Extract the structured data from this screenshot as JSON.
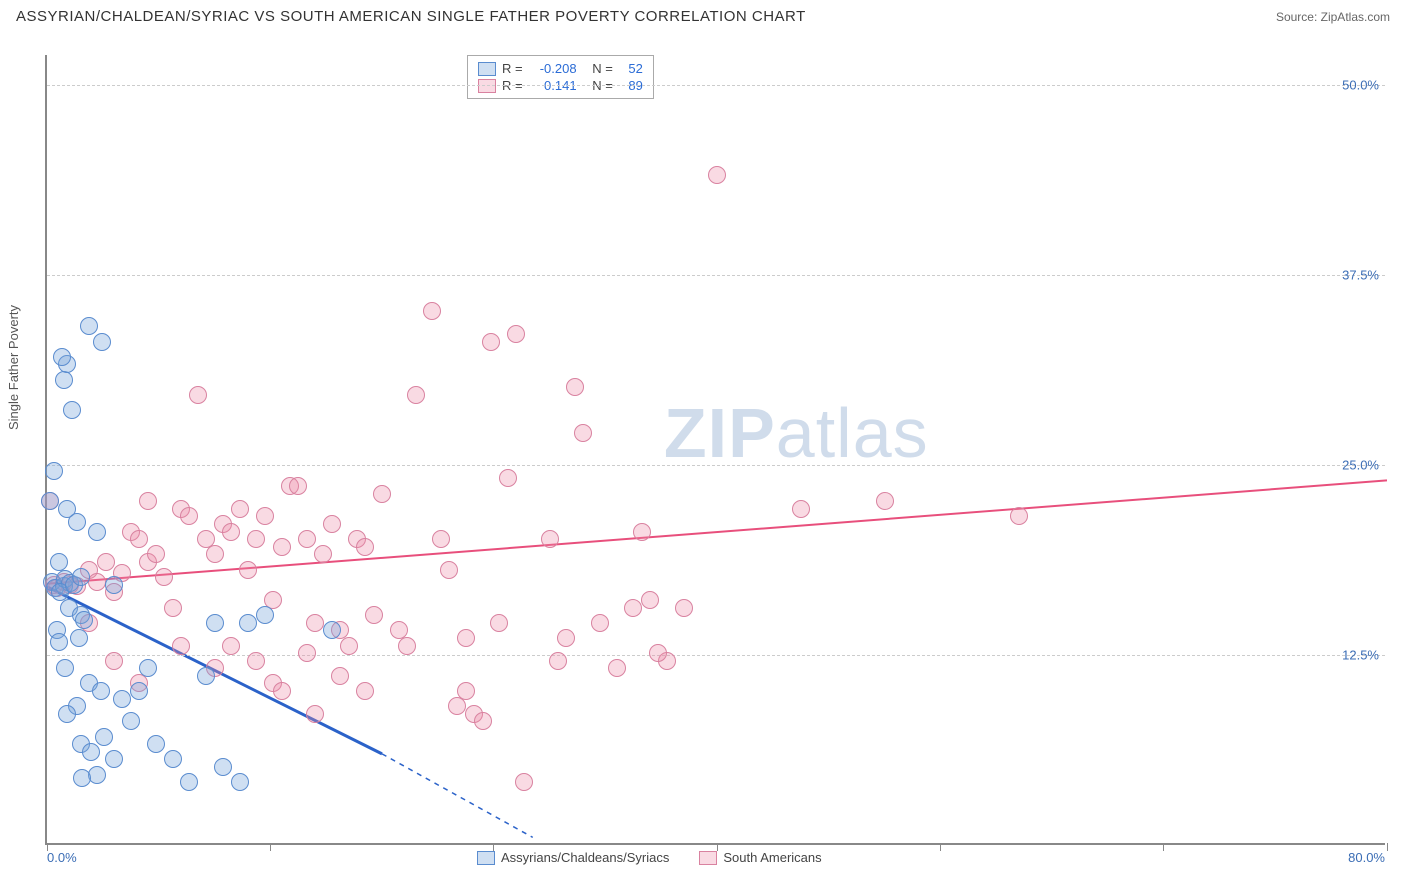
{
  "header": {
    "title": "ASSYRIAN/CHALDEAN/SYRIAC VS SOUTH AMERICAN SINGLE FATHER POVERTY CORRELATION CHART",
    "source_label": "Source:",
    "source_name": "ZipAtlas.com"
  },
  "axes": {
    "y_label": "Single Father Poverty",
    "x_min": 0,
    "x_max": 80,
    "y_min": 0,
    "y_max": 52,
    "x_min_label": "0.0%",
    "x_max_label": "80.0%",
    "y_grid": [
      {
        "value": 12.5,
        "label": "12.5%"
      },
      {
        "value": 25.0,
        "label": "25.0%"
      },
      {
        "value": 37.5,
        "label": "37.5%"
      },
      {
        "value": 50.0,
        "label": "50.0%"
      }
    ],
    "x_ticks": [
      0,
      13.3,
      26.6,
      40,
      53.3,
      66.6,
      80
    ]
  },
  "series": {
    "blue": {
      "label": "Assyrians/Chaldeans/Syriacs",
      "fill": "rgba(118,162,217,0.35)",
      "stroke": "#5a8ccf",
      "r_label": "R =",
      "r_value": "-0.208",
      "n_label": "N =",
      "n_value": "52",
      "marker_radius": 9,
      "trend": {
        "x1": 0,
        "y1": 17.0,
        "x2": 20,
        "y2": 6.0,
        "color": "#2b62c9",
        "width": 3,
        "dash_x2": 29,
        "dash_y2": 0.5
      },
      "points": [
        [
          0.3,
          17.2
        ],
        [
          0.5,
          16.8
        ],
        [
          1.0,
          16.9
        ],
        [
          1.1,
          17.4
        ],
        [
          1.4,
          17.1
        ],
        [
          0.8,
          16.5
        ],
        [
          1.6,
          17.0
        ],
        [
          1.2,
          22.0
        ],
        [
          1.8,
          21.1
        ],
        [
          0.7,
          18.5
        ],
        [
          0.2,
          22.5
        ],
        [
          0.4,
          24.5
        ],
        [
          2.5,
          34.0
        ],
        [
          3.3,
          33.0
        ],
        [
          1.0,
          30.5
        ],
        [
          1.2,
          31.5
        ],
        [
          1.5,
          28.5
        ],
        [
          0.9,
          32.0
        ],
        [
          1.3,
          15.5
        ],
        [
          2.0,
          15.0
        ],
        [
          1.9,
          13.5
        ],
        [
          2.2,
          14.7
        ],
        [
          0.6,
          14.0
        ],
        [
          0.7,
          13.2
        ],
        [
          1.1,
          11.5
        ],
        [
          2.5,
          10.5
        ],
        [
          3.2,
          10.0
        ],
        [
          1.8,
          9.0
        ],
        [
          1.2,
          8.5
        ],
        [
          2.0,
          6.5
        ],
        [
          2.6,
          6.0
        ],
        [
          3.4,
          7.0
        ],
        [
          4.0,
          5.5
        ],
        [
          3.0,
          4.5
        ],
        [
          2.1,
          4.3
        ],
        [
          4.5,
          9.5
        ],
        [
          5.5,
          10.0
        ],
        [
          5.0,
          8.0
        ],
        [
          6.5,
          6.5
        ],
        [
          6.0,
          11.5
        ],
        [
          7.5,
          5.5
        ],
        [
          8.5,
          4.0
        ],
        [
          9.5,
          11.0
        ],
        [
          10.5,
          5.0
        ],
        [
          11.5,
          4.0
        ],
        [
          10.0,
          14.5
        ],
        [
          13.0,
          15.0
        ],
        [
          12.0,
          14.5
        ],
        [
          17.0,
          14.0
        ],
        [
          4.0,
          17.0
        ],
        [
          3.0,
          20.5
        ],
        [
          2.0,
          17.5
        ]
      ]
    },
    "pink": {
      "label": "South Americans",
      "fill": "rgba(236,140,168,0.32)",
      "stroke": "#d982a0",
      "r_label": "R =",
      "r_value": "0.141",
      "n_label": "N =",
      "n_value": "89",
      "marker_radius": 9,
      "trend": {
        "x1": 0,
        "y1": 17.2,
        "x2": 80,
        "y2": 24.0,
        "color": "#e84f7c",
        "width": 2
      },
      "points": [
        [
          0.2,
          22.5
        ],
        [
          0.4,
          17.0
        ],
        [
          0.6,
          16.8
        ],
        [
          1.0,
          17.2
        ],
        [
          1.4,
          17.0
        ],
        [
          1.8,
          16.9
        ],
        [
          2.5,
          18.0
        ],
        [
          3.0,
          17.2
        ],
        [
          3.5,
          18.5
        ],
        [
          4.0,
          16.5
        ],
        [
          4.5,
          17.8
        ],
        [
          5.0,
          20.5
        ],
        [
          5.5,
          20.0
        ],
        [
          6.0,
          18.5
        ],
        [
          6.5,
          19.0
        ],
        [
          7.0,
          17.5
        ],
        [
          8.0,
          22.0
        ],
        [
          8.5,
          21.5
        ],
        [
          9.0,
          29.5
        ],
        [
          9.5,
          20.0
        ],
        [
          10.0,
          19.0
        ],
        [
          10.5,
          21.0
        ],
        [
          11.0,
          20.5
        ],
        [
          11.5,
          22.0
        ],
        [
          12.0,
          18.0
        ],
        [
          12.5,
          20.0
        ],
        [
          13.0,
          21.5
        ],
        [
          13.5,
          16.0
        ],
        [
          14.0,
          19.5
        ],
        [
          14.5,
          23.5
        ],
        [
          15.0,
          23.5
        ],
        [
          15.5,
          20.0
        ],
        [
          16.0,
          14.5
        ],
        [
          16.5,
          19.0
        ],
        [
          17.0,
          21.0
        ],
        [
          17.5,
          14.0
        ],
        [
          18.0,
          13.0
        ],
        [
          18.5,
          20.0
        ],
        [
          19.0,
          19.5
        ],
        [
          19.5,
          15.0
        ],
        [
          20.0,
          23.0
        ],
        [
          21.0,
          14.0
        ],
        [
          21.5,
          13.0
        ],
        [
          22.0,
          29.5
        ],
        [
          23.0,
          35.0
        ],
        [
          23.5,
          20.0
        ],
        [
          24.0,
          18.0
        ],
        [
          24.5,
          9.0
        ],
        [
          25.0,
          10.0
        ],
        [
          25.5,
          8.5
        ],
        [
          26.0,
          8.0
        ],
        [
          26.5,
          33.0
        ],
        [
          27.0,
          14.5
        ],
        [
          27.5,
          24.0
        ],
        [
          28.0,
          33.5
        ],
        [
          28.5,
          4.0
        ],
        [
          25.0,
          13.5
        ],
        [
          10.0,
          11.5
        ],
        [
          11.0,
          13.0
        ],
        [
          12.5,
          12.0
        ],
        [
          13.5,
          10.5
        ],
        [
          14.0,
          10.0
        ],
        [
          15.5,
          12.5
        ],
        [
          16.0,
          8.5
        ],
        [
          17.5,
          11.0
        ],
        [
          19.0,
          10.0
        ],
        [
          30.0,
          20.0
        ],
        [
          30.5,
          12.0
        ],
        [
          31.0,
          13.5
        ],
        [
          31.5,
          30.0
        ],
        [
          32.0,
          27.0
        ],
        [
          33.0,
          14.5
        ],
        [
          34.0,
          11.5
        ],
        [
          35.0,
          15.5
        ],
        [
          36.0,
          16.0
        ],
        [
          37.0,
          12.0
        ],
        [
          40.0,
          44.0
        ],
        [
          35.5,
          20.5
        ],
        [
          36.5,
          12.5
        ],
        [
          38.0,
          15.5
        ],
        [
          45.0,
          22.0
        ],
        [
          50.0,
          22.5
        ],
        [
          58.0,
          21.5
        ],
        [
          2.5,
          14.5
        ],
        [
          4.0,
          12.0
        ],
        [
          5.5,
          10.5
        ],
        [
          6.0,
          22.5
        ],
        [
          7.5,
          15.5
        ],
        [
          8.0,
          13.0
        ]
      ]
    }
  },
  "legend": {
    "series1_label": "Assyrians/Chaldeans/Syriacs",
    "series2_label": "South Americans"
  },
  "watermark": {
    "part1": "ZIP",
    "part2": "atlas"
  },
  "colors": {
    "grid": "#cccccc",
    "axis": "#888888",
    "label_blue": "#3b6db5"
  }
}
